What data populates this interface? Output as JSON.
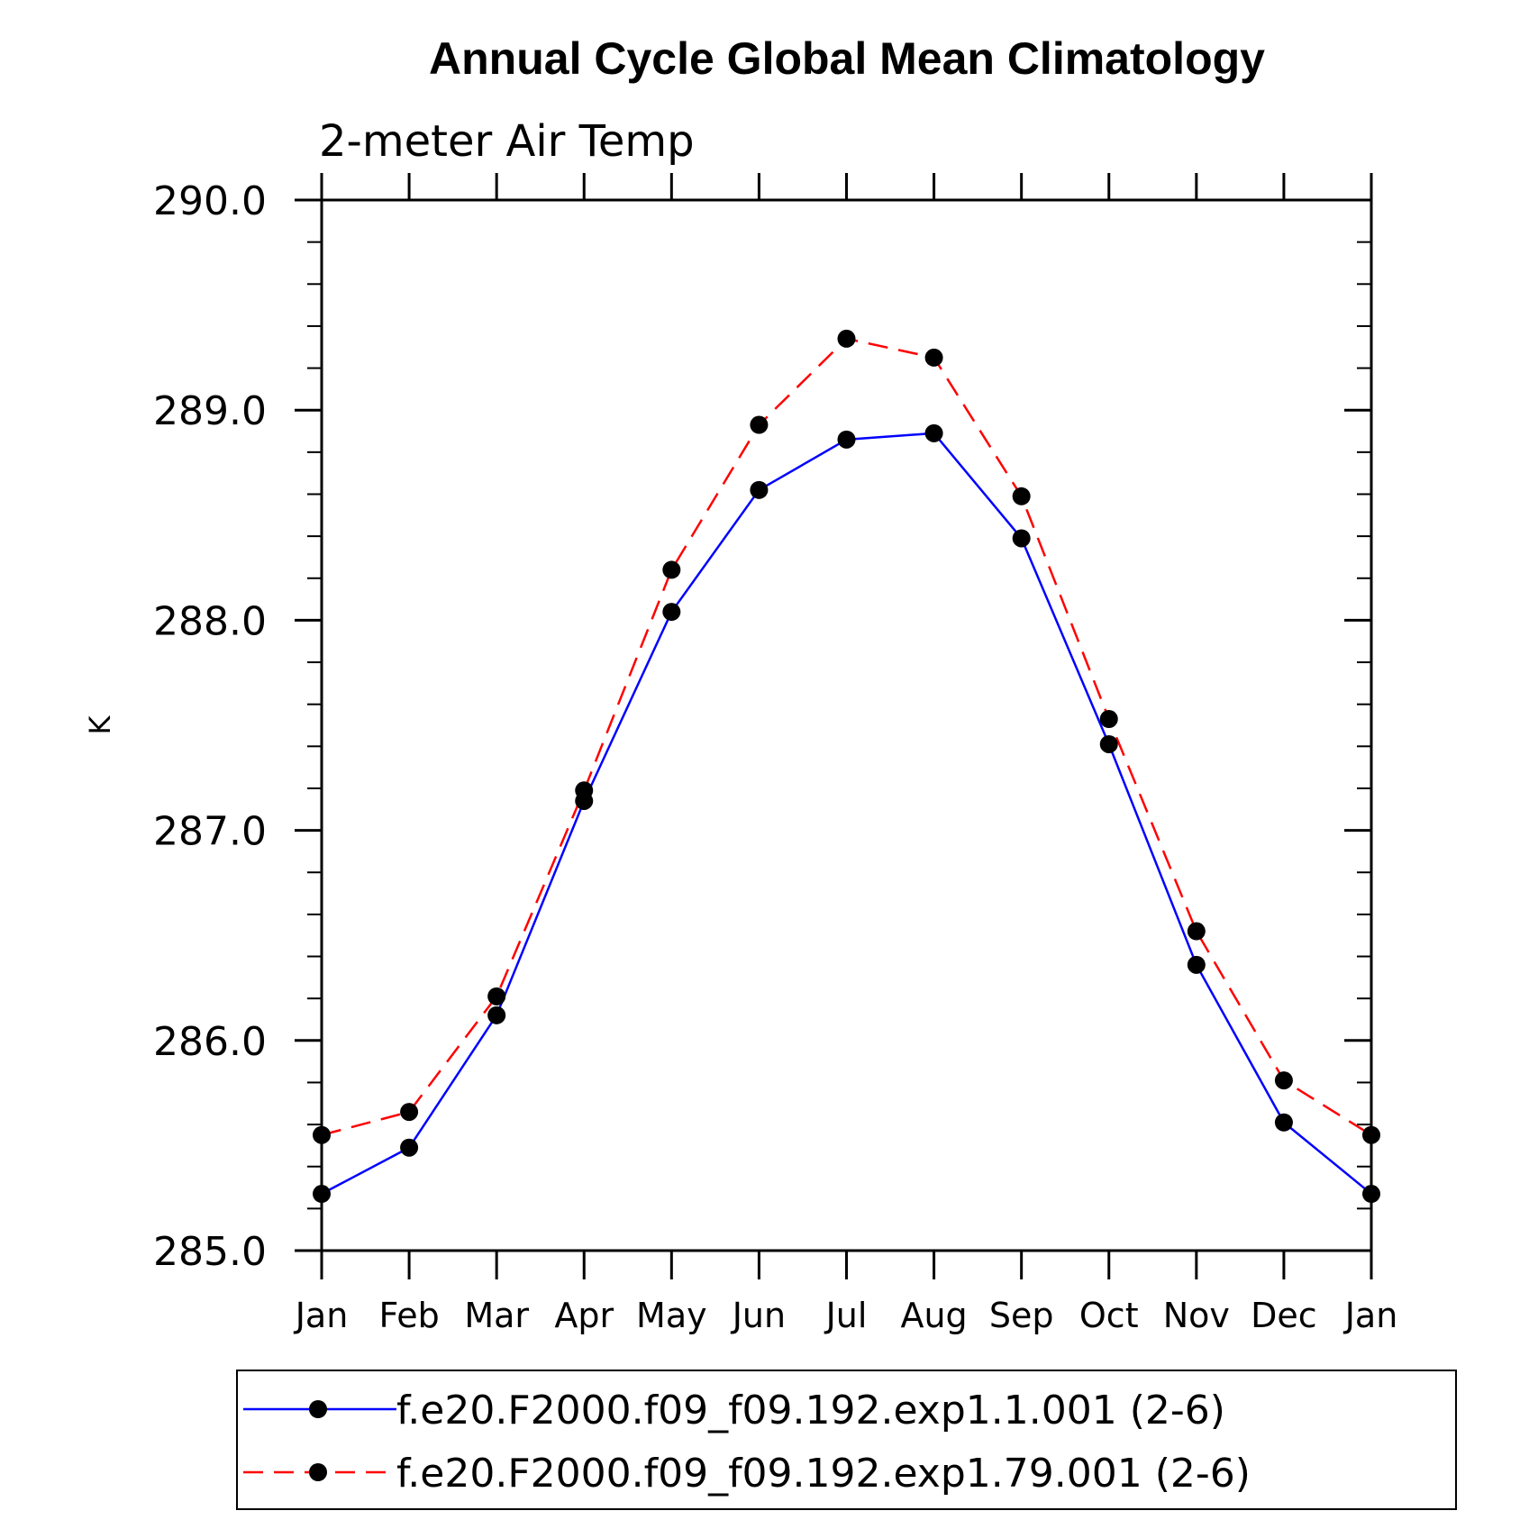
{
  "chart_data": {
    "type": "line",
    "title": "Annual Cycle Global Mean Climatology",
    "subtitle": "2-meter Air Temp",
    "ylabel": "K",
    "xlabel": "",
    "ylim": [
      285.0,
      290.0
    ],
    "y_ticks": [
      "285.0",
      "286.0",
      "287.0",
      "288.0",
      "289.0",
      "290.0"
    ],
    "y_tick_values": [
      285,
      286,
      287,
      288,
      289,
      290
    ],
    "categories": [
      "Jan",
      "Feb",
      "Mar",
      "Apr",
      "May",
      "Jun",
      "Jul",
      "Aug",
      "Sep",
      "Oct",
      "Nov",
      "Dec",
      "Jan"
    ],
    "grid": false,
    "legend_position": "bottom",
    "series": [
      {
        "name": "f.e20.F2000.f09_f09.192.exp1.1.001 (2-6)",
        "color": "#0000ff",
        "style": "solid",
        "marker": "filled-circle",
        "values": [
          285.27,
          285.49,
          286.12,
          287.14,
          288.04,
          288.62,
          288.86,
          288.89,
          288.39,
          287.41,
          286.36,
          285.61,
          285.27
        ]
      },
      {
        "name": "f.e20.F2000.f09_f09.192.exp1.79.001 (2-6)",
        "color": "#ff0000",
        "style": "dashed",
        "marker": "filled-circle",
        "values": [
          285.55,
          285.66,
          286.21,
          287.19,
          288.24,
          288.93,
          289.34,
          289.25,
          288.59,
          287.53,
          286.52,
          285.81,
          285.55
        ]
      }
    ]
  }
}
